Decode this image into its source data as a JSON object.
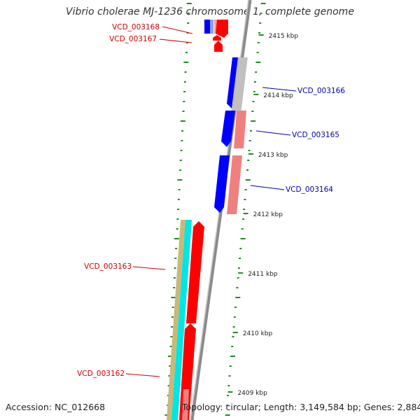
{
  "title": "Vibrio cholerae MJ-1236 chromosome 1, complete genome",
  "footer": {
    "accession": "Accession: NC_012668",
    "summary": "Topology: circular; Length: 3,149,584 bp; Genes: 2,884"
  },
  "scale_ticks": [
    "2415 kbp",
    "2414 kbp",
    "2413 kbp",
    "2412 kbp",
    "2411 kbp",
    "2410 kbp",
    "2409 kbp"
  ],
  "genes": [
    {
      "id": "VCD_003168",
      "strand": "reverse",
      "color": "#cc0000"
    },
    {
      "id": "VCD_003167",
      "strand": "reverse",
      "color": "#cc0000"
    },
    {
      "id": "VCD_003166",
      "strand": "forward",
      "color": "#0000aa"
    },
    {
      "id": "VCD_003165",
      "strand": "forward",
      "color": "#0000aa"
    },
    {
      "id": "VCD_003164",
      "strand": "forward",
      "color": "#0000aa"
    },
    {
      "id": "VCD_003163",
      "strand": "reverse",
      "color": "#cc0000"
    },
    {
      "id": "VCD_003162",
      "strand": "reverse",
      "color": "#cc0000"
    }
  ],
  "colors": {
    "forward_cds": "#0000ff",
    "reverse_cds": "#ff0000",
    "forward_rna": "#f08080",
    "backbone": "#8a8a8a",
    "tick": "#228b22",
    "cyan_track": "#00e5e5",
    "khaki_track": "#c8b87a"
  }
}
